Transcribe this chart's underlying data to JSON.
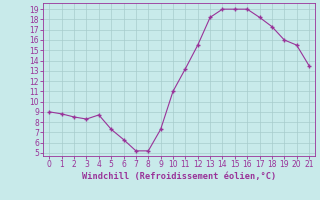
{
  "x": [
    0,
    1,
    2,
    3,
    4,
    5,
    6,
    7,
    8,
    9,
    10,
    11,
    12,
    13,
    14,
    15,
    16,
    17,
    18,
    19,
    20,
    21
  ],
  "y": [
    9.0,
    8.8,
    8.5,
    8.3,
    8.7,
    7.3,
    6.3,
    5.2,
    5.2,
    7.3,
    11.0,
    13.2,
    15.5,
    18.2,
    19.0,
    19.0,
    19.0,
    18.2,
    17.3,
    16.0,
    15.5,
    13.5
  ],
  "line_color": "#993399",
  "marker_color": "#993399",
  "background_color": "#c8eaea",
  "grid_color": "#a8cccc",
  "xlabel": "Windchill (Refroidissement éolien,°C)",
  "xlabel_color": "#993399",
  "tick_color": "#993399",
  "spine_color": "#993399",
  "ylim": [
    4.7,
    19.6
  ],
  "xlim": [
    -0.5,
    21.5
  ],
  "yticks": [
    5,
    6,
    7,
    8,
    9,
    10,
    11,
    12,
    13,
    14,
    15,
    16,
    17,
    18,
    19
  ],
  "xticks": [
    0,
    1,
    2,
    3,
    4,
    5,
    6,
    7,
    8,
    9,
    10,
    11,
    12,
    13,
    14,
    15,
    16,
    17,
    18,
    19,
    20,
    21
  ]
}
